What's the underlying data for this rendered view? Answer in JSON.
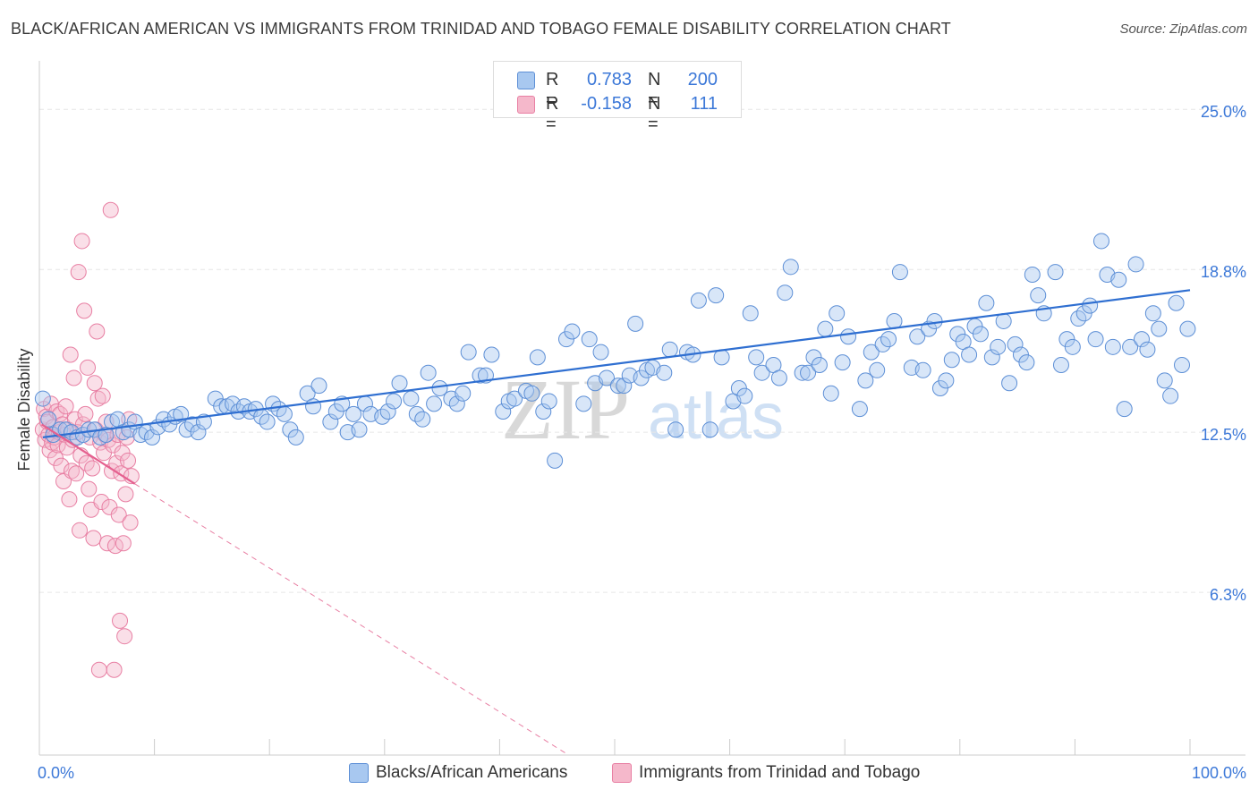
{
  "title": "BLACK/AFRICAN AMERICAN VS IMMIGRANTS FROM TRINIDAD AND TOBAGO FEMALE DISABILITY CORRELATION CHART",
  "source": "Source: ZipAtlas.com",
  "watermark": {
    "zip": "ZIP",
    "atlas": "atlas"
  },
  "legend": {
    "rows": [
      {
        "r_label": "R =",
        "r_value": "0.783",
        "n_label": "N =",
        "n_value": "200",
        "color": "#a8c8f0"
      },
      {
        "r_label": "R =",
        "r_value": "-0.158",
        "n_label": "N =",
        "n_value": "111",
        "color": "#f5b8cb"
      }
    ]
  },
  "bottom_legend": [
    {
      "label": "Blacks/African Americans",
      "color": "#a8c8f0"
    },
    {
      "label": "Immigrants from Trinidad and Tobago",
      "color": "#f5b8cb"
    }
  ],
  "colors": {
    "blue_fill": "#a8c8f0",
    "blue_stroke": "#5d8fd6",
    "blue_line": "#2f6fd1",
    "pink_fill": "#f5b8cb",
    "pink_stroke": "#e87fa3",
    "pink_line": "#e5608f",
    "tick_label": "#3c78d8",
    "grid": "#e6e6e6"
  },
  "chart_data": {
    "type": "scatter",
    "title": "BLACK/AFRICAN AMERICAN VS IMMIGRANTS FROM TRINIDAD AND TOBAGO FEMALE DISABILITY CORRELATION CHART",
    "xlabel": "",
    "ylabel": "Female Disability",
    "xlim": [
      0,
      100
    ],
    "ylim": [
      0,
      26.6
    ],
    "x_tick_labels": [
      "0.0%",
      "100.0%"
    ],
    "y_ticks": [
      6.3,
      12.5,
      18.8,
      25.0
    ],
    "y_tick_labels": [
      "6.3%",
      "12.5%",
      "18.8%",
      "25.0%"
    ],
    "grid": "horizontal dashed",
    "legend_position": "top-center",
    "series": [
      {
        "name": "Blacks/African Americans",
        "r": 0.783,
        "n": 200,
        "trend": {
          "x": [
            0.3,
            100
          ],
          "y": [
            12.3,
            18.0
          ]
        },
        "points": [
          [
            0.3,
            13.8
          ],
          [
            0.8,
            13.0
          ],
          [
            1.2,
            12.4
          ],
          [
            1.8,
            12.6
          ],
          [
            2.3,
            12.6
          ],
          [
            2.8,
            12.5
          ],
          [
            3.3,
            12.3
          ],
          [
            3.8,
            12.4
          ],
          [
            4.3,
            12.6
          ],
          [
            4.8,
            12.6
          ],
          [
            5.3,
            12.3
          ],
          [
            5.8,
            12.4
          ],
          [
            6.3,
            12.9
          ],
          [
            6.8,
            13.0
          ],
          [
            7.3,
            12.5
          ],
          [
            7.8,
            12.6
          ],
          [
            8.3,
            12.9
          ],
          [
            8.8,
            12.4
          ],
          [
            9.3,
            12.5
          ],
          [
            9.8,
            12.3
          ],
          [
            10.3,
            12.7
          ],
          [
            10.8,
            13.0
          ],
          [
            11.3,
            12.8
          ],
          [
            11.8,
            13.1
          ],
          [
            12.3,
            13.2
          ],
          [
            12.8,
            12.6
          ],
          [
            13.3,
            12.8
          ],
          [
            13.8,
            12.5
          ],
          [
            14.3,
            12.9
          ],
          [
            15.3,
            13.8
          ],
          [
            15.8,
            13.5
          ],
          [
            16.3,
            13.5
          ],
          [
            16.8,
            13.6
          ],
          [
            17.3,
            13.3
          ],
          [
            17.8,
            13.5
          ],
          [
            18.3,
            13.3
          ],
          [
            18.8,
            13.4
          ],
          [
            19.3,
            13.1
          ],
          [
            19.8,
            12.9
          ],
          [
            20.3,
            13.6
          ],
          [
            20.8,
            13.4
          ],
          [
            21.3,
            13.2
          ],
          [
            21.8,
            12.6
          ],
          [
            22.3,
            12.3
          ],
          [
            23.3,
            14.0
          ],
          [
            23.8,
            13.5
          ],
          [
            24.3,
            14.3
          ],
          [
            25.3,
            12.9
          ],
          [
            25.8,
            13.3
          ],
          [
            26.3,
            13.6
          ],
          [
            26.8,
            12.5
          ],
          [
            27.3,
            13.2
          ],
          [
            27.8,
            12.6
          ],
          [
            28.3,
            13.6
          ],
          [
            28.8,
            13.2
          ],
          [
            29.8,
            13.1
          ],
          [
            30.3,
            13.3
          ],
          [
            30.8,
            13.7
          ],
          [
            31.3,
            14.4
          ],
          [
            32.3,
            13.8
          ],
          [
            32.8,
            13.2
          ],
          [
            33.3,
            13.0
          ],
          [
            33.8,
            14.8
          ],
          [
            34.3,
            13.6
          ],
          [
            34.8,
            14.2
          ],
          [
            35.8,
            13.8
          ],
          [
            36.3,
            13.6
          ],
          [
            36.8,
            14.0
          ],
          [
            37.3,
            15.6
          ],
          [
            38.3,
            14.7
          ],
          [
            38.8,
            14.7
          ],
          [
            39.3,
            15.5
          ],
          [
            40.3,
            13.3
          ],
          [
            40.8,
            13.7
          ],
          [
            41.3,
            13.8
          ],
          [
            42.3,
            14.1
          ],
          [
            42.8,
            14.0
          ],
          [
            43.3,
            15.4
          ],
          [
            43.8,
            13.3
          ],
          [
            44.3,
            13.7
          ],
          [
            44.8,
            11.4
          ],
          [
            45.8,
            16.1
          ],
          [
            46.3,
            16.4
          ],
          [
            47.3,
            13.6
          ],
          [
            47.8,
            16.1
          ],
          [
            48.3,
            14.4
          ],
          [
            48.8,
            15.6
          ],
          [
            49.3,
            14.6
          ],
          [
            50.3,
            14.3
          ],
          [
            50.8,
            14.3
          ],
          [
            51.3,
            14.7
          ],
          [
            51.8,
            16.7
          ],
          [
            52.3,
            14.6
          ],
          [
            52.8,
            14.9
          ],
          [
            53.3,
            15.0
          ],
          [
            54.3,
            14.8
          ],
          [
            54.8,
            15.7
          ],
          [
            55.3,
            12.6
          ],
          [
            56.3,
            15.6
          ],
          [
            56.8,
            15.5
          ],
          [
            57.3,
            17.6
          ],
          [
            58.3,
            12.6
          ],
          [
            58.8,
            17.8
          ],
          [
            59.3,
            15.4
          ],
          [
            60.3,
            13.7
          ],
          [
            60.8,
            14.2
          ],
          [
            61.3,
            13.9
          ],
          [
            61.8,
            17.1
          ],
          [
            62.3,
            15.4
          ],
          [
            62.8,
            14.8
          ],
          [
            63.8,
            15.1
          ],
          [
            64.3,
            14.6
          ],
          [
            64.8,
            17.9
          ],
          [
            65.3,
            18.9
          ],
          [
            66.3,
            14.8
          ],
          [
            66.8,
            14.8
          ],
          [
            67.3,
            15.4
          ],
          [
            67.8,
            15.1
          ],
          [
            68.3,
            16.5
          ],
          [
            68.8,
            14.0
          ],
          [
            69.3,
            17.1
          ],
          [
            69.8,
            15.2
          ],
          [
            70.3,
            16.2
          ],
          [
            71.3,
            13.4
          ],
          [
            71.8,
            14.5
          ],
          [
            72.3,
            15.6
          ],
          [
            72.8,
            14.9
          ],
          [
            73.3,
            15.9
          ],
          [
            73.8,
            16.1
          ],
          [
            74.3,
            16.8
          ],
          [
            74.8,
            18.7
          ],
          [
            75.8,
            15.0
          ],
          [
            76.3,
            16.2
          ],
          [
            76.8,
            14.9
          ],
          [
            77.3,
            16.5
          ],
          [
            77.8,
            16.8
          ],
          [
            78.3,
            14.2
          ],
          [
            78.8,
            14.5
          ],
          [
            79.3,
            15.3
          ],
          [
            79.8,
            16.3
          ],
          [
            80.3,
            16.0
          ],
          [
            80.8,
            15.5
          ],
          [
            81.3,
            16.6
          ],
          [
            81.8,
            16.3
          ],
          [
            82.3,
            17.5
          ],
          [
            82.8,
            15.4
          ],
          [
            83.3,
            15.8
          ],
          [
            83.8,
            16.8
          ],
          [
            84.3,
            14.4
          ],
          [
            84.8,
            15.9
          ],
          [
            85.3,
            15.5
          ],
          [
            85.8,
            15.2
          ],
          [
            86.3,
            18.6
          ],
          [
            86.8,
            17.8
          ],
          [
            87.3,
            17.1
          ],
          [
            88.3,
            18.7
          ],
          [
            88.8,
            15.1
          ],
          [
            89.3,
            16.1
          ],
          [
            89.8,
            15.8
          ],
          [
            90.3,
            16.9
          ],
          [
            90.8,
            17.1
          ],
          [
            91.3,
            17.4
          ],
          [
            91.8,
            16.1
          ],
          [
            92.3,
            19.9
          ],
          [
            92.8,
            18.6
          ],
          [
            93.3,
            15.8
          ],
          [
            93.8,
            18.4
          ],
          [
            94.3,
            13.4
          ],
          [
            94.8,
            15.8
          ],
          [
            95.3,
            19.0
          ],
          [
            95.8,
            16.1
          ],
          [
            96.3,
            15.7
          ],
          [
            96.8,
            17.1
          ],
          [
            97.3,
            16.5
          ],
          [
            97.8,
            14.5
          ],
          [
            98.3,
            13.9
          ],
          [
            98.8,
            17.5
          ],
          [
            99.3,
            15.1
          ],
          [
            99.8,
            16.5
          ]
        ]
      },
      {
        "name": "Immigrants from Trinidad and Tobago",
        "r": -0.158,
        "n": 111,
        "trend": {
          "x": [
            0.2,
            8.3
          ],
          "y": [
            12.8,
            10.5
          ],
          "dashed_extension": {
            "x": [
              8.3,
              46.0
            ],
            "y": [
              10.5,
              0.0
            ]
          }
        },
        "points": [
          [
            0.3,
            12.6
          ],
          [
            0.4,
            13.4
          ],
          [
            0.5,
            12.2
          ],
          [
            0.6,
            13.1
          ],
          [
            0.7,
            12.9
          ],
          [
            0.8,
            12.4
          ],
          [
            0.9,
            11.8
          ],
          [
            1.0,
            13.6
          ],
          [
            1.1,
            12.1
          ],
          [
            1.2,
            12.7
          ],
          [
            1.3,
            12.3
          ],
          [
            1.4,
            11.5
          ],
          [
            1.5,
            13.3
          ],
          [
            1.6,
            12.0
          ],
          [
            1.7,
            12.5
          ],
          [
            1.8,
            13.2
          ],
          [
            1.9,
            11.2
          ],
          [
            2.0,
            12.8
          ],
          [
            2.1,
            10.6
          ],
          [
            2.2,
            12.4
          ],
          [
            2.3,
            13.5
          ],
          [
            2.4,
            11.9
          ],
          [
            2.5,
            12.6
          ],
          [
            2.6,
            9.9
          ],
          [
            2.7,
            15.5
          ],
          [
            2.8,
            11.0
          ],
          [
            2.9,
            12.2
          ],
          [
            3.0,
            14.6
          ],
          [
            3.1,
            13.0
          ],
          [
            3.2,
            10.9
          ],
          [
            3.3,
            12.5
          ],
          [
            3.4,
            18.7
          ],
          [
            3.5,
            8.7
          ],
          [
            3.6,
            11.6
          ],
          [
            3.7,
            19.9
          ],
          [
            3.8,
            12.8
          ],
          [
            3.9,
            17.2
          ],
          [
            4.0,
            13.2
          ],
          [
            4.1,
            11.3
          ],
          [
            4.2,
            15.0
          ],
          [
            4.3,
            10.3
          ],
          [
            4.4,
            12.3
          ],
          [
            4.5,
            9.5
          ],
          [
            4.6,
            11.1
          ],
          [
            4.7,
            8.4
          ],
          [
            4.8,
            14.4
          ],
          [
            4.9,
            12.6
          ],
          [
            5.0,
            16.4
          ],
          [
            5.1,
            13.8
          ],
          [
            5.2,
            3.3
          ],
          [
            5.3,
            12.1
          ],
          [
            5.4,
            9.8
          ],
          [
            5.5,
            13.9
          ],
          [
            5.6,
            11.7
          ],
          [
            5.7,
            12.4
          ],
          [
            5.8,
            12.9
          ],
          [
            5.9,
            8.2
          ],
          [
            6.0,
            12.2
          ],
          [
            6.1,
            9.6
          ],
          [
            6.2,
            21.1
          ],
          [
            6.3,
            11.0
          ],
          [
            6.4,
            12.0
          ],
          [
            6.5,
            3.3
          ],
          [
            6.6,
            8.1
          ],
          [
            6.7,
            11.3
          ],
          [
            6.8,
            12.4
          ],
          [
            6.9,
            9.3
          ],
          [
            7.0,
            5.2
          ],
          [
            7.1,
            10.9
          ],
          [
            7.2,
            11.7
          ],
          [
            7.3,
            8.2
          ],
          [
            7.4,
            4.6
          ],
          [
            7.5,
            10.1
          ],
          [
            7.6,
            12.3
          ],
          [
            7.7,
            11.4
          ],
          [
            7.8,
            13.0
          ],
          [
            7.9,
            9.0
          ],
          [
            8.0,
            10.8
          ]
        ]
      }
    ]
  }
}
